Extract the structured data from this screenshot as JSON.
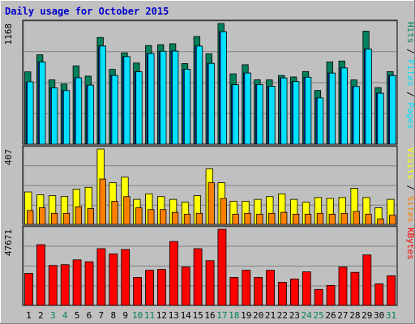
{
  "title": "Daily usage for October 2015",
  "colors": {
    "background": "#c0c0c0",
    "title": "#0000cc",
    "hits": "#00805c",
    "files": "#00e0ff",
    "pages": "#0040ff",
    "visits": "#ffff00",
    "sites": "#ff8000",
    "kbytes": "#ff0000",
    "weekend_label": "#00805c",
    "weekday_label": "#000000"
  },
  "chart_data": [
    {
      "type": "bar",
      "panel": "hits-files-pages",
      "ymax_label": "1168",
      "ymax": 1168,
      "legend": [
        "Pages",
        "Files",
        "Hits"
      ],
      "categories": [
        "1",
        "2",
        "3",
        "4",
        "5",
        "6",
        "7",
        "8",
        "9",
        "10",
        "11",
        "12",
        "13",
        "14",
        "15",
        "16",
        "17",
        "18",
        "19",
        "20",
        "21",
        "22",
        "23",
        "24",
        "25",
        "26",
        "27",
        "28",
        "29",
        "30",
        "31"
      ],
      "weekend": [
        3,
        4,
        10,
        11,
        17,
        18,
        24,
        25,
        31
      ],
      "series": [
        {
          "name": "Hits",
          "values": [
            700,
            865,
            622,
            582,
            758,
            659,
            1033,
            724,
            884,
            786,
            955,
            963,
            972,
            780,
            1042,
            874,
            1168,
            681,
            769,
            623,
            622,
            665,
            651,
            703,
            520,
            795,
            805,
            622,
            1094,
            548,
            702
          ]
        },
        {
          "name": "Files",
          "values": [
            604,
            795,
            545,
            519,
            643,
            571,
            950,
            665,
            848,
            701,
            877,
            899,
            901,
            725,
            950,
            782,
            1089,
            575,
            689,
            577,
            560,
            641,
            607,
            648,
            448,
            688,
            738,
            558,
            921,
            493,
            664
          ]
        },
        {
          "name": "Pages",
          "values": [
            600,
            795,
            545,
            519,
            643,
            571,
            950,
            665,
            848,
            701,
            877,
            899,
            901,
            725,
            950,
            782,
            1089,
            575,
            689,
            577,
            560,
            641,
            607,
            648,
            448,
            688,
            738,
            558,
            921,
            493,
            664
          ]
        }
      ]
    },
    {
      "type": "bar",
      "panel": "visits-sites",
      "ymax_label": "407",
      "ymax": 407,
      "legend": [
        "Sites",
        "Visits"
      ],
      "categories": [
        "1",
        "2",
        "3",
        "4",
        "5",
        "6",
        "7",
        "8",
        "9",
        "10",
        "11",
        "12",
        "13",
        "14",
        "15",
        "16",
        "17",
        "18",
        "19",
        "20",
        "21",
        "22",
        "23",
        "24",
        "25",
        "26",
        "27",
        "28",
        "29",
        "30",
        "31"
      ],
      "series": [
        {
          "name": "Visits",
          "values": [
            175,
            160,
            155,
            150,
            190,
            200,
            407,
            225,
            255,
            135,
            165,
            150,
            135,
            120,
            155,
            300,
            225,
            125,
            125,
            135,
            150,
            165,
            135,
            120,
            145,
            140,
            145,
            195,
            145,
            90,
            135
          ]
        },
        {
          "name": "Sites",
          "values": [
            75,
            90,
            60,
            60,
            95,
            85,
            245,
            125,
            150,
            90,
            80,
            80,
            65,
            55,
            60,
            225,
            140,
            55,
            60,
            55,
            60,
            65,
            55,
            55,
            60,
            55,
            60,
            70,
            55,
            30,
            50
          ]
        }
      ]
    },
    {
      "type": "bar",
      "panel": "kbytes",
      "ymax_label": "47671",
      "ymax": 47671,
      "legend": [
        "KBytes"
      ],
      "categories": [
        "1",
        "2",
        "3",
        "4",
        "5",
        "6",
        "7",
        "8",
        "9",
        "10",
        "11",
        "12",
        "13",
        "14",
        "15",
        "16",
        "17",
        "18",
        "19",
        "20",
        "21",
        "22",
        "23",
        "24",
        "25",
        "26",
        "27",
        "28",
        "29",
        "30",
        "31"
      ],
      "series": [
        {
          "name": "KBytes",
          "values": [
            20000,
            38000,
            25000,
            25500,
            28500,
            27300,
            35500,
            32200,
            35000,
            17500,
            22000,
            22500,
            40000,
            24000,
            35500,
            28000,
            47671,
            17500,
            22000,
            17500,
            22000,
            14500,
            16500,
            21000,
            10000,
            12500,
            24000,
            20700,
            31600,
            13500,
            18500
          ]
        }
      ]
    }
  ]
}
